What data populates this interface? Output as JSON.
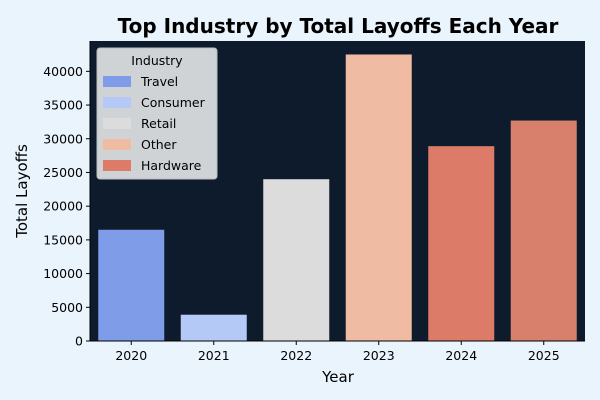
{
  "chart_data": {
    "type": "bar",
    "title": "Top Industry by Total Layoffs Each Year",
    "xlabel": "Year",
    "ylabel": "Total Layoffs",
    "categories": [
      "2020",
      "2021",
      "2022",
      "2023",
      "2024",
      "2025"
    ],
    "values": [
      16500,
      3900,
      24000,
      42500,
      28900,
      32700
    ],
    "bar_colors": [
      "#7f9ce8",
      "#b4c9f6",
      "#dcdcdc",
      "#efbba3",
      "#db7b68",
      "#d9806d"
    ],
    "ylim": [
      0,
      44500
    ],
    "yticks": [
      0,
      5000,
      10000,
      15000,
      20000,
      25000,
      30000,
      35000,
      40000
    ],
    "grid": false,
    "plot_background": "#0e1b2c",
    "legend": {
      "title": "Industry",
      "placement": "top-left",
      "entries": [
        {
          "label": "Travel",
          "color": "#7f9ce8"
        },
        {
          "label": "Consumer",
          "color": "#b4c9f6"
        },
        {
          "label": "Retail",
          "color": "#dcdcdc"
        },
        {
          "label": "Other",
          "color": "#efbba3"
        },
        {
          "label": "Hardware",
          "color": "#db7b68"
        }
      ]
    }
  }
}
